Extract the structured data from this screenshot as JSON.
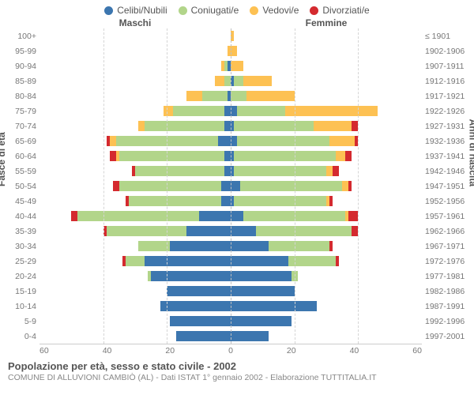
{
  "legend": [
    {
      "label": "Celibi/Nubili",
      "color": "#3c76af"
    },
    {
      "label": "Coniugati/e",
      "color": "#b2d58a"
    },
    {
      "label": "Vedovi/e",
      "color": "#fdc153"
    },
    {
      "label": "Divorziati/e",
      "color": "#d42a2f"
    }
  ],
  "headers": {
    "male": "Maschi",
    "female": "Femmine"
  },
  "axis_labels": {
    "left": "Fasce di età",
    "right": "Anni di nascita"
  },
  "xticks": [
    60,
    40,
    20,
    0,
    20,
    40,
    60
  ],
  "xmax": 60,
  "footer": {
    "title": "Popolazione per età, sesso e stato civile - 2002",
    "sub": "COMUNE DI ALLUVIONI CAMBIÒ (AL) - Dati ISTAT 1° gennaio 2002 - Elaborazione TUTTITALIA.IT"
  },
  "age_groups": [
    "100+",
    "95-99",
    "90-94",
    "85-89",
    "80-84",
    "75-79",
    "70-74",
    "65-69",
    "60-64",
    "55-59",
    "50-54",
    "45-49",
    "40-44",
    "35-39",
    "30-34",
    "25-29",
    "20-24",
    "15-19",
    "10-14",
    "5-9",
    "0-4"
  ],
  "birth_years": [
    "≤ 1901",
    "1902-1906",
    "1907-1911",
    "1912-1916",
    "1917-1921",
    "1922-1926",
    "1927-1931",
    "1932-1936",
    "1937-1941",
    "1942-1946",
    "1947-1951",
    "1952-1956",
    "1957-1961",
    "1962-1966",
    "1967-1971",
    "1972-1976",
    "1977-1981",
    "1982-1986",
    "1987-1991",
    "1992-1996",
    "1997-2001"
  ],
  "data": [
    {
      "m": [
        0,
        0,
        0,
        0
      ],
      "f": [
        0,
        0,
        1,
        0
      ]
    },
    {
      "m": [
        0,
        0,
        1,
        0
      ],
      "f": [
        0,
        0,
        2,
        0
      ]
    },
    {
      "m": [
        1,
        1,
        1,
        0
      ],
      "f": [
        0,
        0,
        4,
        0
      ]
    },
    {
      "m": [
        0,
        2,
        3,
        0
      ],
      "f": [
        1,
        3,
        9,
        0
      ]
    },
    {
      "m": [
        1,
        8,
        5,
        0
      ],
      "f": [
        0,
        5,
        15,
        0
      ]
    },
    {
      "m": [
        2,
        16,
        3,
        0
      ],
      "f": [
        2,
        15,
        29,
        0
      ]
    },
    {
      "m": [
        2,
        25,
        2,
        0
      ],
      "f": [
        1,
        25,
        12,
        2
      ]
    },
    {
      "m": [
        4,
        32,
        2,
        1
      ],
      "f": [
        2,
        29,
        8,
        1
      ]
    },
    {
      "m": [
        2,
        33,
        1,
        2
      ],
      "f": [
        1,
        32,
        3,
        2
      ]
    },
    {
      "m": [
        2,
        28,
        0,
        1
      ],
      "f": [
        1,
        29,
        2,
        2
      ]
    },
    {
      "m": [
        3,
        32,
        0,
        2
      ],
      "f": [
        3,
        32,
        2,
        1
      ]
    },
    {
      "m": [
        3,
        29,
        0,
        1
      ],
      "f": [
        1,
        29,
        1,
        1
      ]
    },
    {
      "m": [
        10,
        38,
        0,
        2
      ],
      "f": [
        4,
        32,
        1,
        3
      ]
    },
    {
      "m": [
        14,
        25,
        0,
        1
      ],
      "f": [
        8,
        30,
        0,
        2
      ]
    },
    {
      "m": [
        19,
        10,
        0,
        0
      ],
      "f": [
        12,
        19,
        0,
        1
      ]
    },
    {
      "m": [
        27,
        6,
        0,
        1
      ],
      "f": [
        18,
        15,
        0,
        1
      ]
    },
    {
      "m": [
        25,
        1,
        0,
        0
      ],
      "f": [
        19,
        2,
        0,
        0
      ]
    },
    {
      "m": [
        20,
        0,
        0,
        0
      ],
      "f": [
        20,
        0,
        0,
        0
      ]
    },
    {
      "m": [
        22,
        0,
        0,
        0
      ],
      "f": [
        27,
        0,
        0,
        0
      ]
    },
    {
      "m": [
        19,
        0,
        0,
        0
      ],
      "f": [
        19,
        0,
        0,
        0
      ]
    },
    {
      "m": [
        17,
        0,
        0,
        0
      ],
      "f": [
        12,
        0,
        0,
        0
      ]
    }
  ]
}
